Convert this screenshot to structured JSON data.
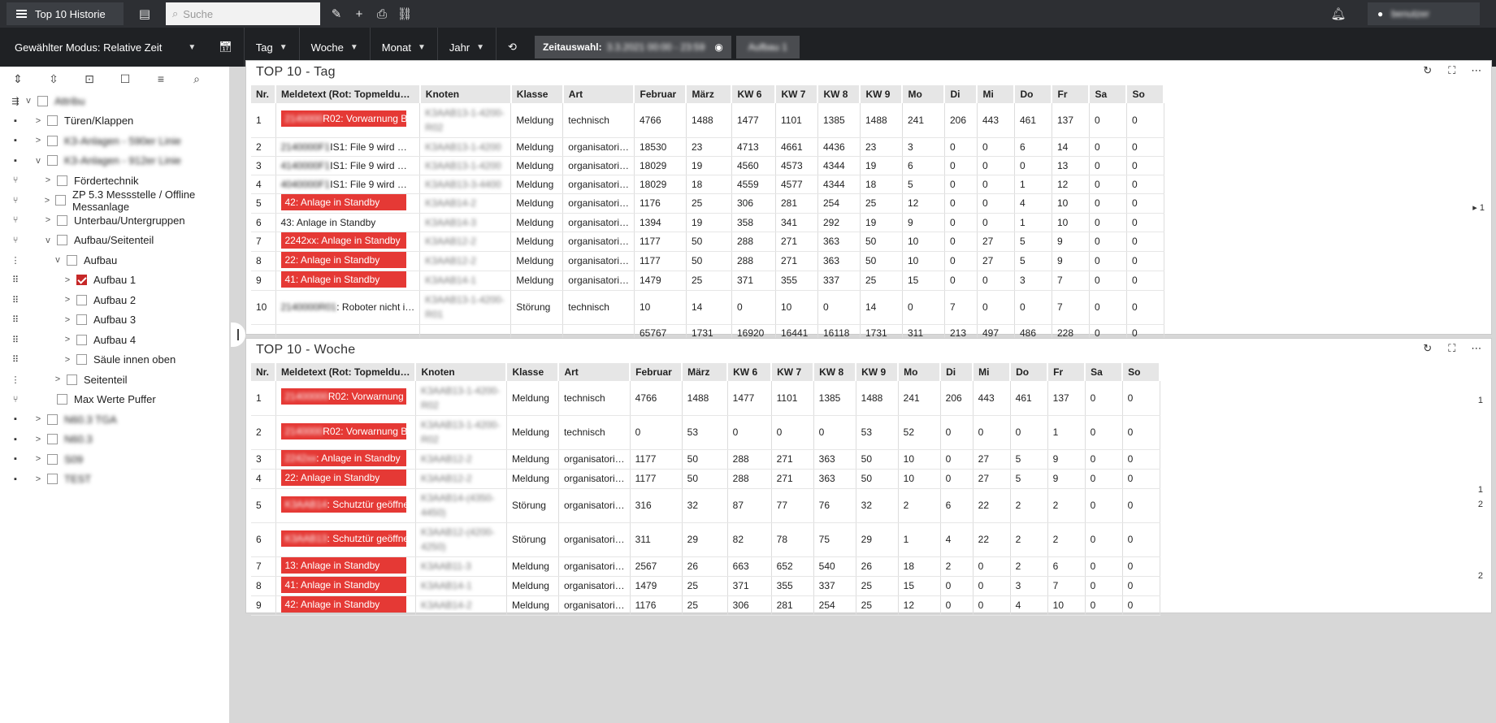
{
  "topbar": {
    "title": "Top 10 Historie",
    "search_placeholder": "Suche",
    "user": "benutzer"
  },
  "modebar": {
    "mode": "Gewählter Modus: Relative Zeit",
    "tag": "Tag",
    "woche": "Woche",
    "monat": "Monat",
    "jahr": "Jahr",
    "zeitauswahl": "Zeitauswahl:",
    "zeitwert": "3.3.2021 00:00 - 23:59",
    "aufbau": "Aufbau 1"
  },
  "tree": [
    {
      "label": "Attribu",
      "blur": true,
      "caret": "v",
      "indent": 0,
      "icon": "⇶"
    },
    {
      "label": "Türen/Klappen",
      "blur": false,
      "caret": ">",
      "indent": 1,
      "icon": "▪"
    },
    {
      "label": "K3-Anlagen - 590er Linie",
      "blur": true,
      "caret": ">",
      "indent": 1,
      "icon": "▪"
    },
    {
      "label": "K3-Anlagen - 912er Linie",
      "blur": true,
      "caret": "v",
      "indent": 1,
      "icon": "▪"
    },
    {
      "label": "Fördertechnik",
      "blur": false,
      "caret": ">",
      "indent": 2,
      "icon": "⑂"
    },
    {
      "label": "ZP 5.3 Messstelle / Offline Messanlage",
      "blur": false,
      "caret": ">",
      "indent": 2,
      "icon": "⑂"
    },
    {
      "label": "Unterbau/Untergruppen",
      "blur": false,
      "caret": ">",
      "indent": 2,
      "icon": "⑂"
    },
    {
      "label": "Aufbau/Seitenteil",
      "blur": false,
      "caret": "v",
      "indent": 2,
      "icon": "⑂"
    },
    {
      "label": "Aufbau",
      "blur": false,
      "caret": "v",
      "indent": 3,
      "icon": "⋮"
    },
    {
      "label": "Aufbau 1",
      "blur": false,
      "caret": ">",
      "indent": 4,
      "icon": "⠿",
      "checked": true
    },
    {
      "label": "Aufbau 2",
      "blur": false,
      "caret": ">",
      "indent": 4,
      "icon": "⠿"
    },
    {
      "label": "Aufbau 3",
      "blur": false,
      "caret": ">",
      "indent": 4,
      "icon": "⠿"
    },
    {
      "label": "Aufbau 4",
      "blur": false,
      "caret": ">",
      "indent": 4,
      "icon": "⠿"
    },
    {
      "label": "Säule innen oben",
      "blur": false,
      "caret": ">",
      "indent": 4,
      "icon": "⠿"
    },
    {
      "label": "Seitenteil",
      "blur": false,
      "caret": ">",
      "indent": 3,
      "icon": "⋮"
    },
    {
      "label": "Max Werte Puffer",
      "blur": false,
      "caret": "",
      "indent": 2,
      "icon": "⑂"
    },
    {
      "label": "N60.3 TGA",
      "blur": true,
      "caret": ">",
      "indent": 1,
      "icon": "▪"
    },
    {
      "label": "N60.3",
      "blur": true,
      "caret": ">",
      "indent": 1,
      "icon": "▪"
    },
    {
      "label": "S09",
      "blur": true,
      "caret": ">",
      "indent": 1,
      "icon": "▪"
    },
    {
      "label": "TEST",
      "blur": true,
      "caret": ">",
      "indent": 1,
      "icon": "▪"
    }
  ],
  "columns": [
    "Nr.",
    "Meldetext (Rot: Topmeldu…",
    "Knoten",
    "Klasse",
    "Art",
    "Februar",
    "März",
    "KW 6",
    "KW 7",
    "KW 8",
    "KW 9",
    "Mo",
    "Di",
    "Mi",
    "Do",
    "Fr",
    "Sa",
    "So"
  ],
  "panel_tag": {
    "title": "TOP 10 - Tag",
    "rows": [
      {
        "nr": "1",
        "red": true,
        "pre": "2140000",
        "txt": "R02: Vorwarnung Bu…",
        "knoten": "K3AAB13-1-4200-R02",
        "klasse": "Meldung",
        "art": "technisch",
        "v": [
          "4766",
          "1488",
          "1477",
          "1101",
          "1385",
          "1488",
          "241",
          "206",
          "443",
          "461",
          "137",
          "0",
          "0"
        ],
        "h": 42
      },
      {
        "nr": "2",
        "red": false,
        "pre": "2140000F1",
        "txt": "IS1: File 9 wird …",
        "knoten": "K3AAB13-1-4200",
        "klasse": "Meldung",
        "art": "organisatori…",
        "v": [
          "18530",
          "23",
          "4713",
          "4661",
          "4436",
          "23",
          "3",
          "0",
          "0",
          "6",
          "14",
          "0",
          "0"
        ],
        "h": 23
      },
      {
        "nr": "3",
        "red": false,
        "pre": "4140000F1",
        "txt": "IS1: File 9 wird …",
        "knoten": "K3AAB13-1-4200",
        "klasse": "Meldung",
        "art": "organisatori…",
        "v": [
          "18029",
          "19",
          "4560",
          "4573",
          "4344",
          "19",
          "6",
          "0",
          "0",
          "0",
          "13",
          "0",
          "0"
        ],
        "h": 23
      },
      {
        "nr": "4",
        "red": false,
        "pre": "4040000F1",
        "txt": "IS1: File 9 wird …",
        "knoten": "K3AAB13-3-4400",
        "klasse": "Meldung",
        "art": "organisatori…",
        "v": [
          "18029",
          "18",
          "4559",
          "4577",
          "4344",
          "18",
          "5",
          "0",
          "0",
          "1",
          "12",
          "0",
          "0"
        ],
        "h": 23
      },
      {
        "nr": "5",
        "red": true,
        "pre": "",
        "txt": "42: Anlage in Standby",
        "knoten": "K3AAB14-2",
        "klasse": "Meldung",
        "art": "organisatori…",
        "v": [
          "1176",
          "25",
          "306",
          "281",
          "254",
          "25",
          "12",
          "0",
          "0",
          "4",
          "10",
          "0",
          "0"
        ],
        "h": 23
      },
      {
        "nr": "6",
        "red": false,
        "pre": "",
        "txt": "43: Anlage in Standby",
        "knoten": "K3AAB14-3",
        "klasse": "Meldung",
        "art": "organisatori…",
        "v": [
          "1394",
          "19",
          "358",
          "341",
          "292",
          "19",
          "9",
          "0",
          "0",
          "1",
          "10",
          "0",
          "0"
        ],
        "h": 23
      },
      {
        "nr": "7",
        "red": true,
        "pre": "",
        "txt": "2242xx: Anlage in Standby",
        "knoten": "K3AAB12-2",
        "klasse": "Meldung",
        "art": "organisatori…",
        "v": [
          "1177",
          "50",
          "288",
          "271",
          "363",
          "50",
          "10",
          "0",
          "27",
          "5",
          "9",
          "0",
          "0"
        ],
        "h": 23
      },
      {
        "nr": "8",
        "red": true,
        "pre": "",
        "txt": "22: Anlage in Standby",
        "knoten": "K3AAB12-2",
        "klasse": "Meldung",
        "art": "organisatori…",
        "v": [
          "1177",
          "50",
          "288",
          "271",
          "363",
          "50",
          "10",
          "0",
          "27",
          "5",
          "9",
          "0",
          "0"
        ],
        "h": 23
      },
      {
        "nr": "9",
        "red": true,
        "pre": "",
        "txt": "41: Anlage in Standby",
        "knoten": "K3AAB14-1",
        "klasse": "Meldung",
        "art": "organisatori…",
        "v": [
          "1479",
          "25",
          "371",
          "355",
          "337",
          "25",
          "15",
          "0",
          "0",
          "3",
          "7",
          "0",
          "0"
        ],
        "h": 23
      },
      {
        "nr": "10",
        "red": false,
        "pre": "2140000R01",
        "txt": ": Roboter nicht i…",
        "knoten": "K3AAB13-1-4200-R01",
        "klasse": "Störung",
        "art": "technisch",
        "v": [
          "10",
          "14",
          "0",
          "10",
          "0",
          "14",
          "0",
          "7",
          "0",
          "0",
          "7",
          "0",
          "0"
        ],
        "h": 42
      },
      {
        "nr": "",
        "red": false,
        "pre": "",
        "txt": "",
        "knoten": "",
        "klasse": "",
        "art": "",
        "v": [
          "65767",
          "1731",
          "16920",
          "16441",
          "16118",
          "1731",
          "311",
          "213",
          "497",
          "486",
          "228",
          "0",
          "0"
        ],
        "h": 22
      }
    ]
  },
  "panel_woche": {
    "title": "TOP 10 - Woche",
    "rows": [
      {
        "nr": "1",
        "red": true,
        "pre": "21400000",
        "txt": "R02: Vorwarnung Bu…",
        "knoten": "K3AAB13-1-4200-R02",
        "klasse": "Meldung",
        "art": "technisch",
        "v": [
          "4766",
          "1488",
          "1477",
          "1101",
          "1385",
          "1488",
          "241",
          "206",
          "443",
          "461",
          "137",
          "0",
          "0"
        ],
        "h": 42
      },
      {
        "nr": "2",
        "red": true,
        "pre": "2140000",
        "txt": "R02: Vorwarnung Bu…",
        "knoten": "K3AAB13-1-4200-R02",
        "klasse": "Meldung",
        "art": "technisch",
        "v": [
          "0",
          "53",
          "0",
          "0",
          "0",
          "53",
          "52",
          "0",
          "0",
          "0",
          "1",
          "0",
          "0"
        ],
        "h": 42
      },
      {
        "nr": "3",
        "red": true,
        "pre": "2242xx",
        "txt": ": Anlage in Standby",
        "knoten": "K3AAB12-2",
        "klasse": "Meldung",
        "art": "organisatori…",
        "v": [
          "1177",
          "50",
          "288",
          "271",
          "363",
          "50",
          "10",
          "0",
          "27",
          "5",
          "9",
          "0",
          "0"
        ],
        "h": 23
      },
      {
        "nr": "4",
        "red": true,
        "pre": "",
        "txt": "22: Anlage in Standby",
        "knoten": "K3AAB12-2",
        "klasse": "Meldung",
        "art": "organisatori…",
        "v": [
          "1177",
          "50",
          "288",
          "271",
          "363",
          "50",
          "10",
          "0",
          "27",
          "5",
          "9",
          "0",
          "0"
        ],
        "h": 23
      },
      {
        "nr": "5",
        "red": true,
        "pre": "K3AAB14",
        "txt": ": Schutztür geöffne…",
        "knoten": "K3AAB14-(4350-4450)",
        "klasse": "Störung",
        "art": "organisatori…",
        "v": [
          "316",
          "32",
          "87",
          "77",
          "76",
          "32",
          "2",
          "6",
          "22",
          "2",
          "2",
          "0",
          "0"
        ],
        "h": 42
      },
      {
        "nr": "6",
        "red": true,
        "pre": "K3AAB13",
        "txt": ": Schutztür geöffne…",
        "knoten": "K3AAB12-(4200-4250)",
        "klasse": "Störung",
        "art": "organisatori…",
        "v": [
          "311",
          "29",
          "82",
          "78",
          "75",
          "29",
          "1",
          "4",
          "22",
          "2",
          "2",
          "0",
          "0"
        ],
        "h": 42
      },
      {
        "nr": "7",
        "red": true,
        "pre": "",
        "txt": "13: Anlage in Standby",
        "knoten": "K3AAB11-3",
        "klasse": "Meldung",
        "art": "organisatori…",
        "v": [
          "2567",
          "26",
          "663",
          "652",
          "540",
          "26",
          "18",
          "2",
          "0",
          "2",
          "6",
          "0",
          "0"
        ],
        "h": 23
      },
      {
        "nr": "8",
        "red": true,
        "pre": "",
        "txt": "41: Anlage in Standby",
        "knoten": "K3AAB14-1",
        "klasse": "Meldung",
        "art": "organisatori…",
        "v": [
          "1479",
          "25",
          "371",
          "355",
          "337",
          "25",
          "15",
          "0",
          "0",
          "3",
          "7",
          "0",
          "0"
        ],
        "h": 23
      },
      {
        "nr": "9",
        "red": true,
        "pre": "",
        "txt": "42: Anlage in Standby",
        "knoten": "K3AAB14-2",
        "klasse": "Meldung",
        "art": "organisatori…",
        "v": [
          "1176",
          "25",
          "306",
          "281",
          "254",
          "25",
          "12",
          "0",
          "0",
          "4",
          "10",
          "0",
          "0"
        ],
        "h": 23
      }
    ]
  },
  "scroll_tag": "1",
  "scroll_woche": [
    "1",
    "1",
    "2",
    "2"
  ]
}
